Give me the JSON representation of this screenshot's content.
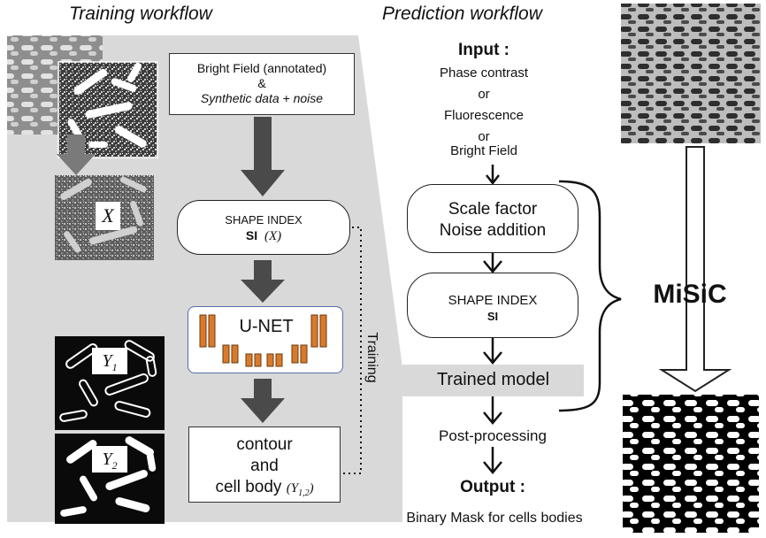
{
  "training": {
    "title": "Training workflow",
    "input_line1": "Bright Field (annotated)",
    "input_amp": "&",
    "input_line3": "Synthetic data + noise",
    "si_title": "SHAPE INDEX",
    "si_bold": "SI",
    "si_arg": "(X)",
    "unet_label": "U-NET",
    "output_line1": "contour",
    "output_line2": "and",
    "output_line3": "cell body",
    "output_arg": "(Y",
    "output_sub": "1,2",
    "output_close": ")",
    "feedback_label": "Training",
    "x_label": "X",
    "y1_label": "Y",
    "y1_sub": "1",
    "y2_label": "Y",
    "y2_sub": "2"
  },
  "prediction": {
    "title": "Prediction workflow",
    "input_title": "Input :",
    "input_options": [
      "Phase contrast",
      "or",
      "Fluorescence",
      "or",
      "Bright Field"
    ],
    "step1_line1": "Scale factor",
    "step1_line2": "Noise addition",
    "step2_title": "SHAPE INDEX",
    "step2_bold": "SI",
    "trained_model": "Trained model",
    "post_processing": "Post-processing",
    "output_title": "Output :",
    "output_desc": "Binary Mask for cells bodies",
    "brace_label": "MiSiC"
  },
  "colors": {
    "panel_gray": "#d9d9d9",
    "arrow_gray": "#4a4a4a",
    "unet_orange": "#d97a2b",
    "unet_border": "#5a6ea8"
  }
}
